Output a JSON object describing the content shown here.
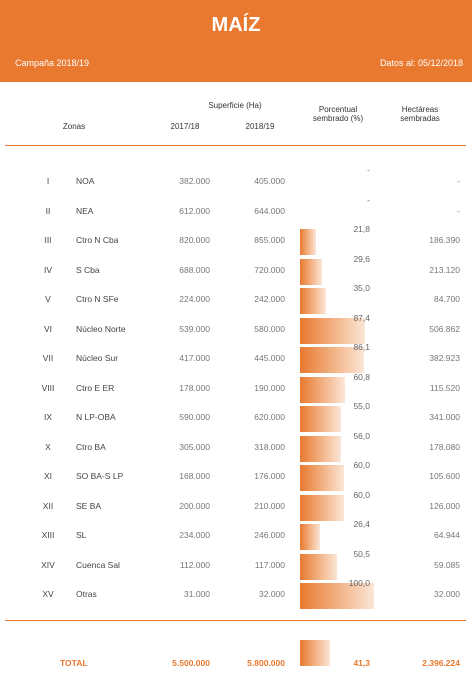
{
  "header": {
    "title": "MAÍZ",
    "campaign": "Campaña 2018/19",
    "date": "Datos al: 05/12/2018"
  },
  "columns": {
    "superficie": "Superficie (Ha)",
    "zonas": "Zonas",
    "y1": "2017/18",
    "y2": "2018/19",
    "porcentual_1": "Porcentual",
    "porcentual_2": "sembrado (%)",
    "hectareas_1": "Hectáreas",
    "hectareas_2": "sembradas"
  },
  "rows": [
    {
      "roman": "I",
      "zona": "NOA",
      "s1718": "382.000",
      "s1819": "405.000",
      "pct": "-",
      "pct_value": 0,
      "ha": "-"
    },
    {
      "roman": "II",
      "zona": "NEA",
      "s1718": "612.000",
      "s1819": "644.000",
      "pct": "-",
      "pct_value": 0,
      "ha": "-"
    },
    {
      "roman": "III",
      "zona": "Ctro N Cba",
      "s1718": "820.000",
      "s1819": "855.000",
      "pct": "21,8",
      "pct_value": 21.8,
      "ha": "186.390"
    },
    {
      "roman": "IV",
      "zona": "S Cba",
      "s1718": "688.000",
      "s1819": "720.000",
      "pct": "29,6",
      "pct_value": 29.6,
      "ha": "213.120"
    },
    {
      "roman": "V",
      "zona": "Ctro N SFe",
      "s1718": "224.000",
      "s1819": "242.000",
      "pct": "35,0",
      "pct_value": 35.0,
      "ha": "84.700"
    },
    {
      "roman": "VI",
      "zona": "Núcleo Norte",
      "s1718": "539.000",
      "s1819": "580.000",
      "pct": "87,4",
      "pct_value": 87.4,
      "ha": "506.862"
    },
    {
      "roman": "VII",
      "zona": "Núcleo Sur",
      "s1718": "417.000",
      "s1819": "445.000",
      "pct": "86,1",
      "pct_value": 86.1,
      "ha": "382.923"
    },
    {
      "roman": "VIII",
      "zona": "Ctro E ER",
      "s1718": "178.000",
      "s1819": "190.000",
      "pct": "60,8",
      "pct_value": 60.8,
      "ha": "115.520"
    },
    {
      "roman": "IX",
      "zona": "N LP-OBA",
      "s1718": "590.000",
      "s1819": "620.000",
      "pct": "55,0",
      "pct_value": 55.0,
      "ha": "341.000"
    },
    {
      "roman": "X",
      "zona": "Ctro BA",
      "s1718": "305.000",
      "s1819": "318.000",
      "pct": "56,0",
      "pct_value": 56.0,
      "ha": "178.080"
    },
    {
      "roman": "XI",
      "zona": "SO BA-S LP",
      "s1718": "168.000",
      "s1819": "176.000",
      "pct": "60,0",
      "pct_value": 60.0,
      "ha": "105.600"
    },
    {
      "roman": "XII",
      "zona": "SE BA",
      "s1718": "200.000",
      "s1819": "210.000",
      "pct": "60,0",
      "pct_value": 60.0,
      "ha": "126.000"
    },
    {
      "roman": "XIII",
      "zona": "SL",
      "s1718": "234.000",
      "s1819": "246.000",
      "pct": "26,4",
      "pct_value": 26.4,
      "ha": "64.944"
    },
    {
      "roman": "XIV",
      "zona": "Cuenca Sal",
      "s1718": "112.000",
      "s1819": "117.000",
      "pct": "50,5",
      "pct_value": 50.5,
      "ha": "59.085"
    },
    {
      "roman": "XV",
      "zona": "Otras",
      "s1718": "31.000",
      "s1819": "32.000",
      "pct": "100,0",
      "pct_value": 100.0,
      "ha": "32.000"
    }
  ],
  "total": {
    "label": "TOTAL",
    "s1718": "5.500.000",
    "s1819": "5.800.000",
    "pct": "41,3",
    "pct_value": 41.3,
    "ha": "2.396.224"
  },
  "colors": {
    "accent": "#E8792F"
  }
}
